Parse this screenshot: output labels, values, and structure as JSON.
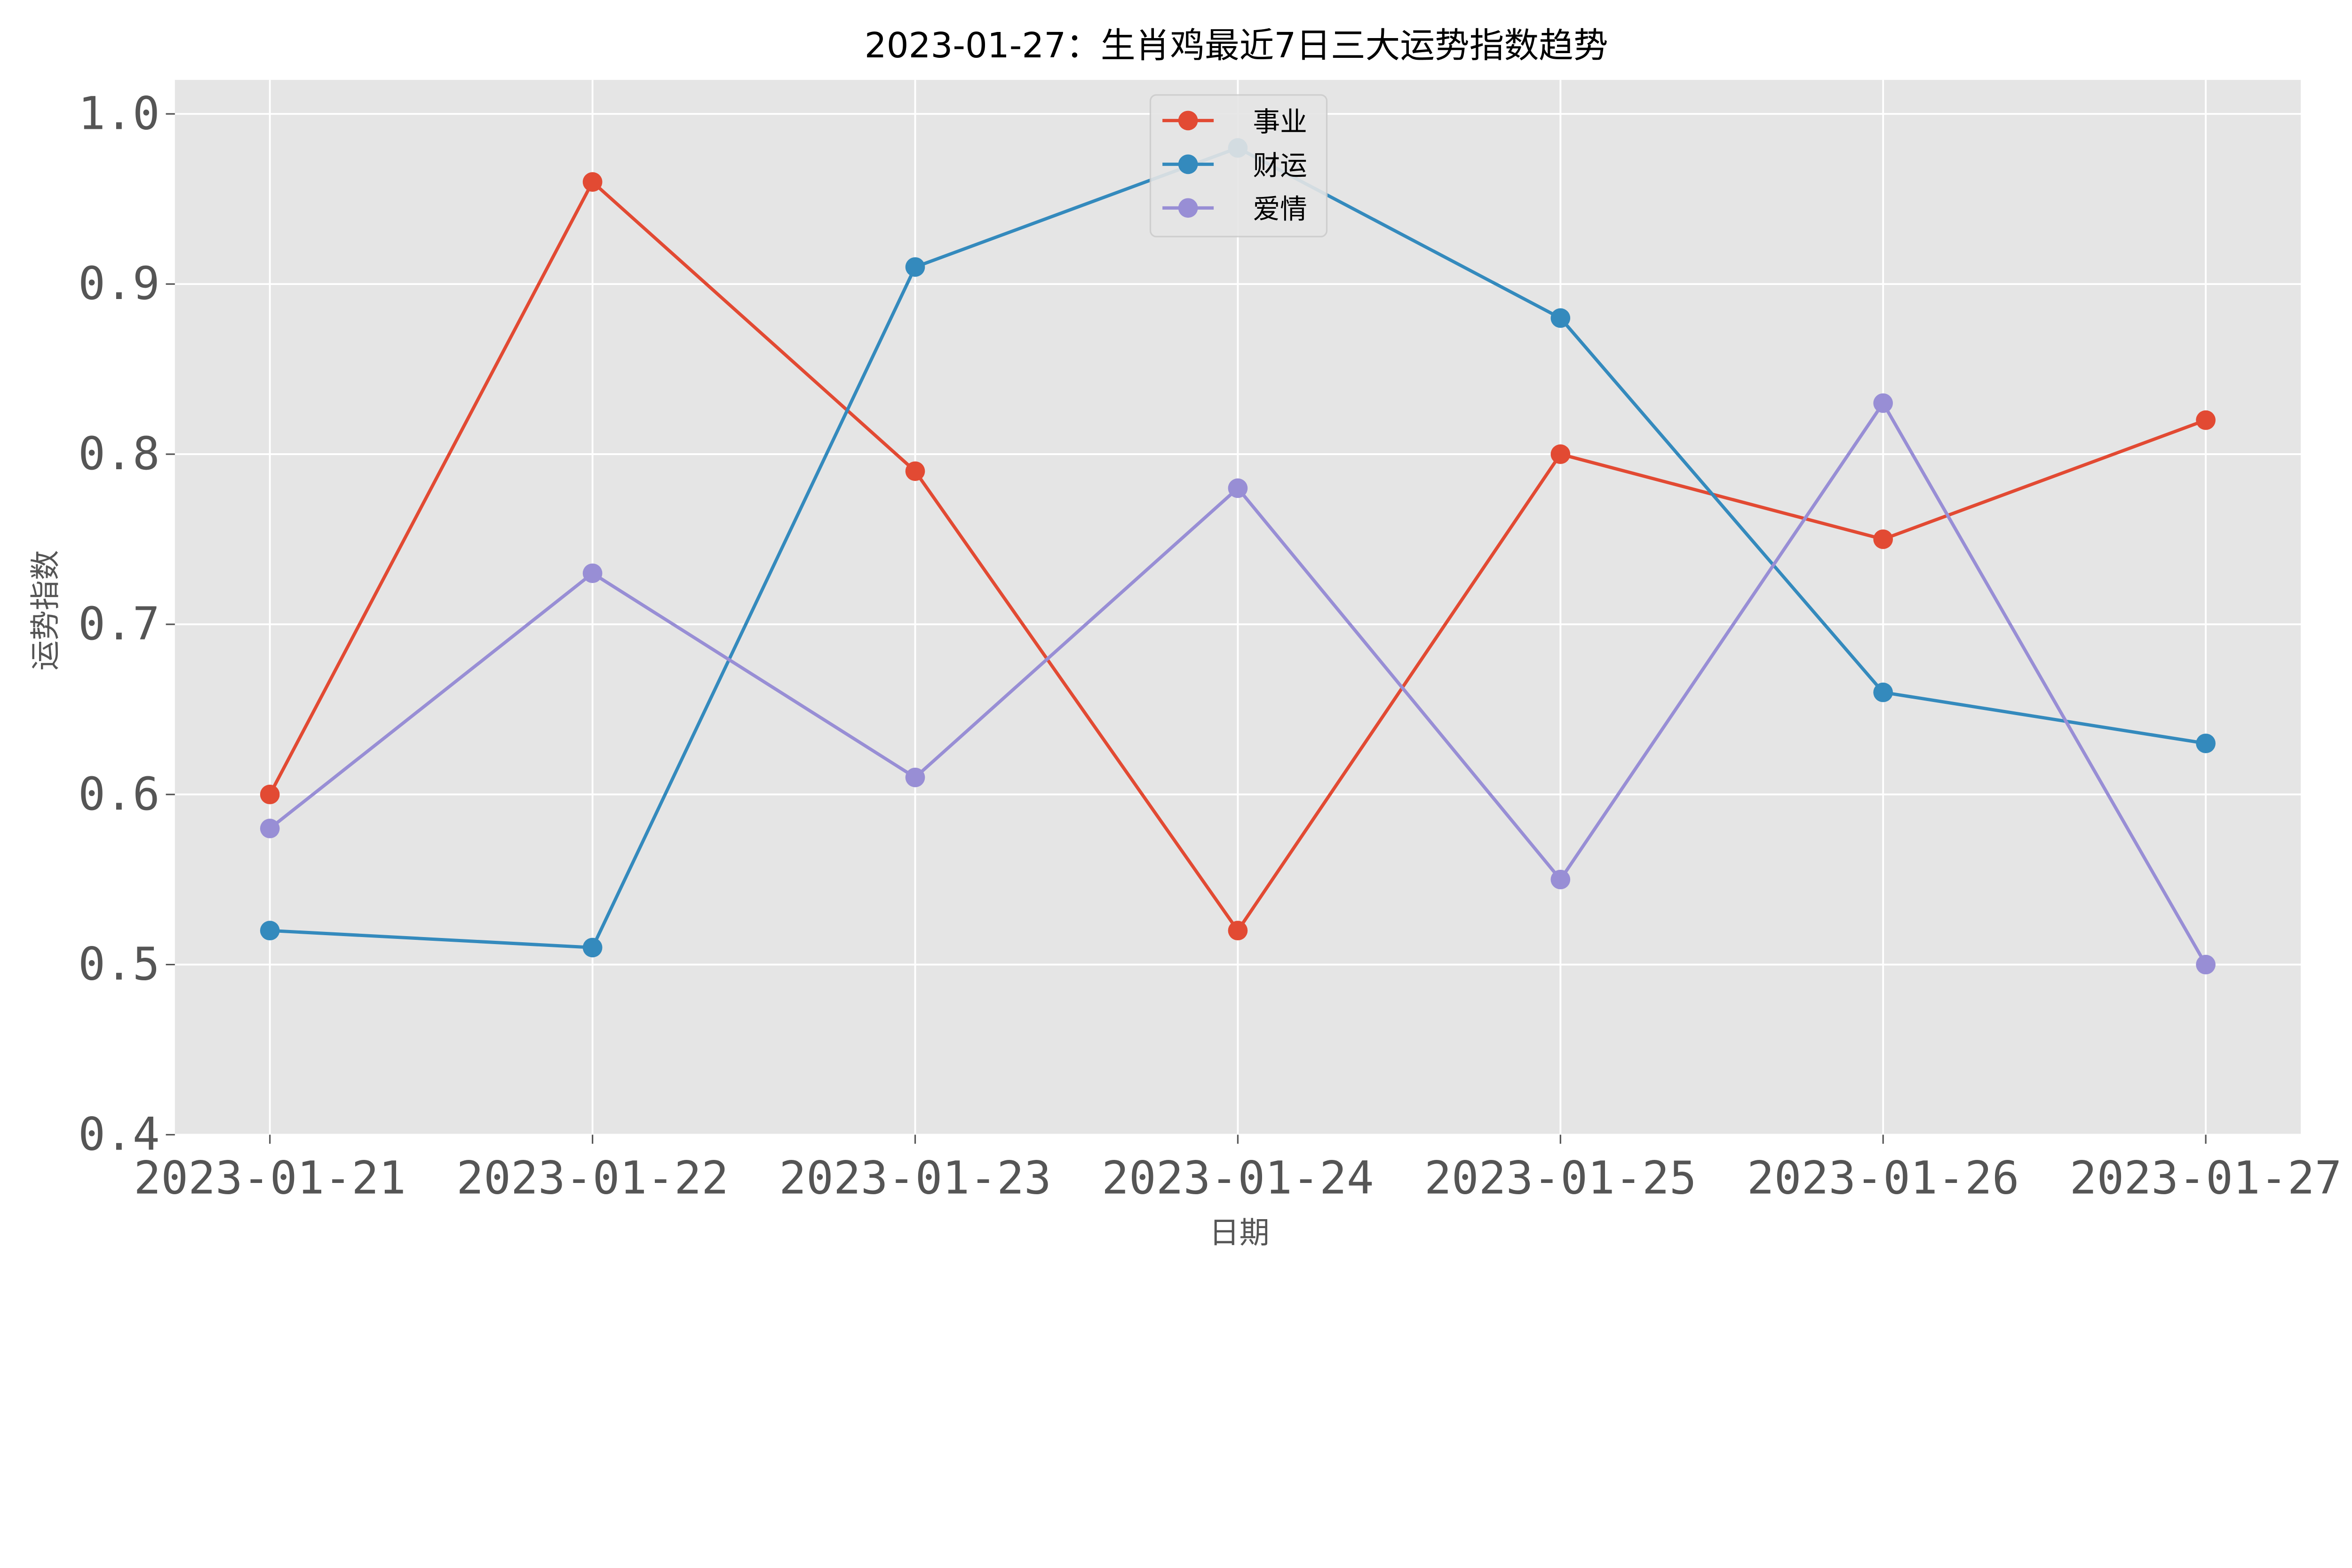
{
  "chart_data": {
    "type": "line",
    "title": "2023-01-27：生肖鸡最近7日三大运势指数趋势",
    "xlabel": "日期",
    "ylabel": "运势指数",
    "categories": [
      "2023-01-21",
      "2023-01-22",
      "2023-01-23",
      "2023-01-24",
      "2023-01-25",
      "2023-01-26",
      "2023-01-27"
    ],
    "ylim": [
      0.4,
      1.02
    ],
    "yticks": [
      "0.4",
      "0.5",
      "0.6",
      "0.7",
      "0.8",
      "0.9",
      "1.0"
    ],
    "grid": true,
    "legend_position": "top-center",
    "series": [
      {
        "name": "事业",
        "color": "#E24A33",
        "values": [
          0.6,
          0.96,
          0.79,
          0.52,
          0.8,
          0.75,
          0.82
        ]
      },
      {
        "name": "财运",
        "color": "#348ABD",
        "values": [
          0.52,
          0.51,
          0.91,
          0.98,
          0.88,
          0.66,
          0.63
        ]
      },
      {
        "name": "爱情",
        "color": "#988ED5",
        "values": [
          0.58,
          0.73,
          0.61,
          0.78,
          0.55,
          0.83,
          0.5
        ]
      }
    ],
    "background": "#E5E5E5"
  }
}
